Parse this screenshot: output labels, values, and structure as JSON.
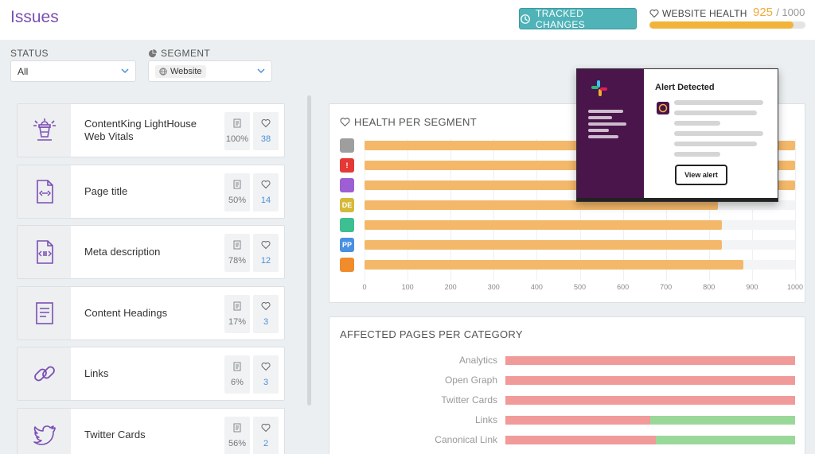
{
  "header": {
    "title": "Issues",
    "tracked_changes_label": "TRACKED CHANGES",
    "website_health_label": "WEBSITE HEALTH",
    "health_score": "925",
    "health_max": "/ 1000",
    "health_fraction": 0.925,
    "colors": {
      "accent": "#7b4fb3",
      "teal": "#4fb3b8",
      "health": "#f2b33b"
    }
  },
  "filters": {
    "status_label": "STATUS",
    "status_value": "All",
    "segment_label": "SEGMENT",
    "segment_value": "Website"
  },
  "issues": [
    {
      "icon": "lighthouse-icon",
      "label": "ContentKing LightHouse Web Vitals",
      "percent": "100%",
      "likes": "38"
    },
    {
      "icon": "page-code-icon",
      "label": "Page title",
      "percent": "50%",
      "likes": "14"
    },
    {
      "icon": "page-meta-icon",
      "label": "Meta description",
      "percent": "78%",
      "likes": "12"
    },
    {
      "icon": "document-lines-icon",
      "label": "Content Headings",
      "percent": "17%",
      "likes": "3"
    },
    {
      "icon": "link-icon",
      "label": "Links",
      "percent": "6%",
      "likes": "3"
    },
    {
      "icon": "twitter-icon",
      "label": "Twitter Cards",
      "percent": "56%",
      "likes": "2"
    }
  ],
  "health_per_segment": {
    "title": "HEALTH PER SEGMENT",
    "chart_data": {
      "type": "bar",
      "orientation": "horizontal",
      "categories": [
        "globe",
        "!",
        "doc",
        "DE",
        "trend",
        "PP",
        "money"
      ],
      "values": [
        1000,
        1000,
        1000,
        820,
        830,
        830,
        880
      ],
      "xlim": [
        0,
        1000
      ],
      "ticks": [
        "0",
        "100",
        "200",
        "300",
        "400",
        "500",
        "600",
        "700",
        "800",
        "900",
        "1000"
      ]
    },
    "segments": [
      {
        "icon": "globe-icon",
        "text": "",
        "color": "#9e9e9e"
      },
      {
        "icon": "alert-icon",
        "text": "!",
        "color": "#e53935"
      },
      {
        "icon": "document-icon",
        "text": "",
        "color": "#9c5fd4"
      },
      {
        "icon": "de-badge-icon",
        "text": "DE",
        "color": "#d4b93a"
      },
      {
        "icon": "trend-icon",
        "text": "",
        "color": "#3dbf92"
      },
      {
        "icon": "pp-badge-icon",
        "text": "PP",
        "color": "#4a90e2"
      },
      {
        "icon": "money-bag-icon",
        "text": "",
        "color": "#f08c2b"
      }
    ]
  },
  "affected_pages": {
    "title": "AFFECTED PAGES PER CATEGORY",
    "chart_data": {
      "type": "bar",
      "orientation": "horizontal",
      "stacked": true,
      "categories": [
        "Analytics",
        "Open Graph",
        "Twitter Cards",
        "Links",
        "Canonical Link"
      ],
      "series": [
        {
          "values": [
            100,
            100,
            100,
            50,
            52
          ],
          "color": "#f19a9a"
        },
        {
          "values": [
            0,
            0,
            0,
            50,
            48
          ],
          "color": "#9ad89a"
        }
      ]
    }
  },
  "slack_popup": {
    "title": "Alert Detected",
    "button_label": "View alert"
  }
}
